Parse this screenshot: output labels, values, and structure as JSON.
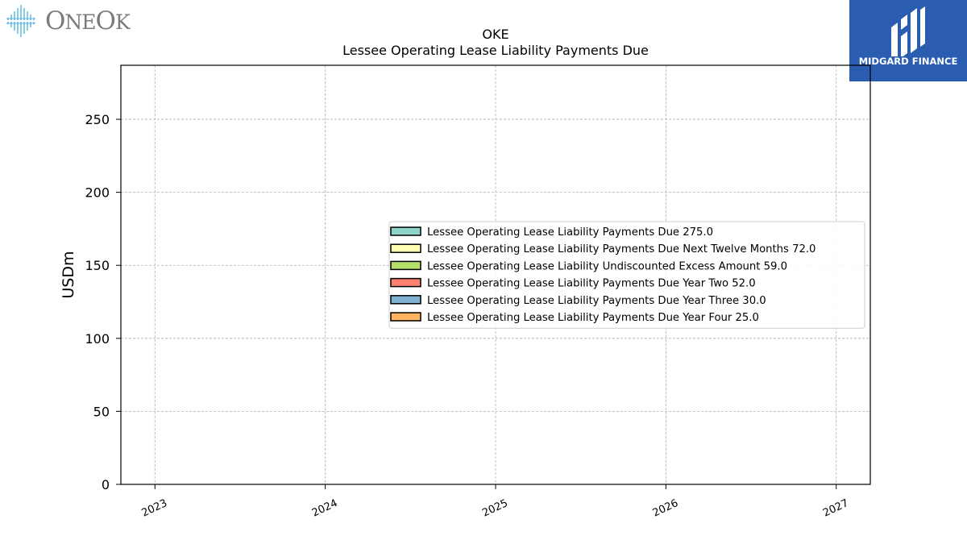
{
  "logos": {
    "left": "ONEOK",
    "right": "MIDGARD FINANCE"
  },
  "chart_data": {
    "type": "bar",
    "title": "OKE",
    "subtitle": "Lessee Operating Lease Liability Payments Due",
    "xlabel": "",
    "ylabel": "USDm",
    "ylim": [
      0,
      287
    ],
    "xlim": [
      2022.8,
      2027.2
    ],
    "x_ticks": [
      "2023",
      "2024",
      "2025",
      "2026",
      "2027"
    ],
    "y_ticks": [
      0,
      50,
      100,
      150,
      200,
      250
    ],
    "grid": true,
    "legend_position": "center-right",
    "series": [
      {
        "name": "Lessee Operating Lease Liability Payments Due",
        "value": 275.0,
        "value_label": "275.0",
        "color": "#8dd3c7"
      },
      {
        "name": "Lessee Operating Lease Liability Payments Due Next Twelve Months",
        "value": 72.0,
        "value_label": "72.0",
        "color": "#ffffb3"
      },
      {
        "name": "Lessee Operating Lease Liability Undiscounted Excess Amount",
        "value": 59.0,
        "value_label": "59.0",
        "color": "#b3de69"
      },
      {
        "name": "Lessee Operating Lease Liability Payments Due Year Two",
        "value": 52.0,
        "value_label": "52.0",
        "color": "#fb8072"
      },
      {
        "name": "Lessee Operating Lease Liability Payments Due Year Three",
        "value": 30.0,
        "value_label": "30.0",
        "color": "#80b1d3"
      },
      {
        "name": "Lessee Operating Lease Liability Payments Due Year Four",
        "value": 25.0,
        "value_label": "25.0",
        "color": "#fdb462"
      }
    ]
  }
}
